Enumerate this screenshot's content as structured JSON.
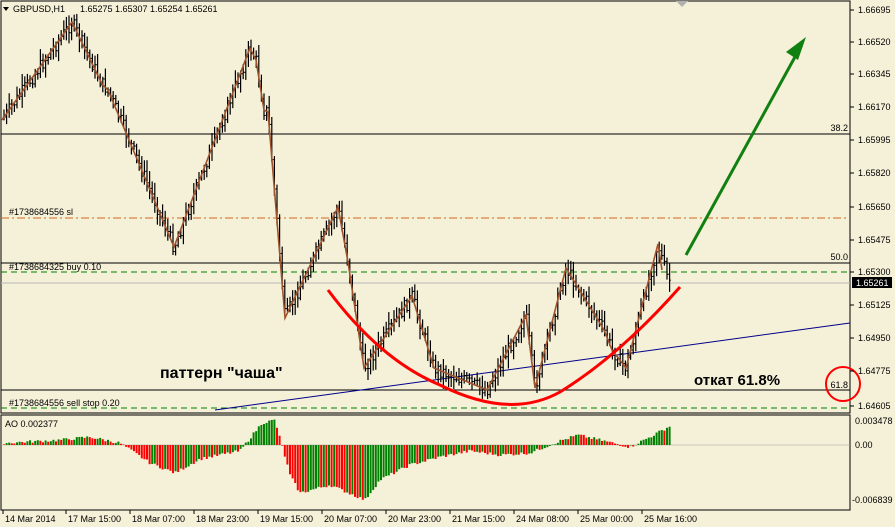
{
  "header": {
    "symbol": "GBPUSD,H1",
    "open": "1.65275",
    "high": "1.65307",
    "low": "1.65254",
    "close": "1.65261"
  },
  "price_scale": [
    "1.66695",
    "1.66520",
    "1.66345",
    "1.66170",
    "1.65995",
    "1.65820",
    "1.65650",
    "1.65475",
    "1.65300",
    "1.65125",
    "1.64950",
    "1.64775",
    "1.64605"
  ],
  "current_price": "1.65261",
  "indicator": {
    "label": "AO 0.002377",
    "scale": [
      "0.003478",
      "0.00",
      "-0.006839"
    ]
  },
  "time_labels": [
    "14 Mar 2014",
    "17 Mar 15:00",
    "18 Mar 07:00",
    "18 Mar 23:00",
    "19 Mar 15:00",
    "20 Mar 07:00",
    "20 Mar 23:00",
    "21 Mar 15:00",
    "24 Mar 08:00",
    "25 Mar 00:00",
    "25 Mar 16:00"
  ],
  "levels": {
    "fib_382": "38.2",
    "fib_500": "50.0",
    "fib_618": "61.8",
    "sl_label": "#1738684556 sl",
    "buy_label": "#1738684325 buy 0.10",
    "sellstop_label": "#1738684556 sell stop 0.20"
  },
  "annotations": {
    "pattern": "паттерн \"чаша\"",
    "retrace": "откат 61.8%"
  },
  "colors": {
    "background": "#f5f0d8",
    "bull_bar": "#008000",
    "bear_bar": "#ff0000",
    "zigzag": "#a0522d",
    "cup": "#ff0000",
    "arrow": "#108010",
    "trendline": "#00008b",
    "sl_line": "#d2691e",
    "green_dash": "#008000"
  }
}
